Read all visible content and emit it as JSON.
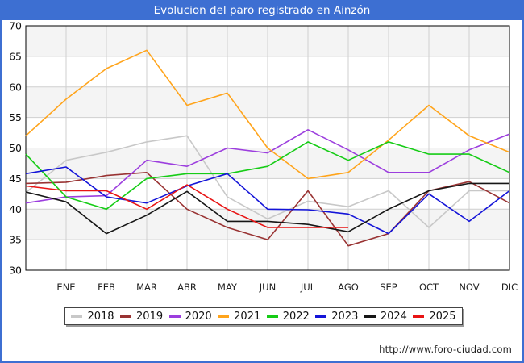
{
  "title": "Evolucion del paro registrado en Ainzón",
  "footer": {
    "url": "http://www.foro-ciudad.com"
  },
  "colors": {
    "frame_blue": "#3d6fd2",
    "grid": "#cfcfcf",
    "band": "#f4f4f4",
    "plot_border": "#000000"
  },
  "chart_data": {
    "type": "line",
    "title": "Evolucion del paro registrado en Ainzón",
    "xlabel": "",
    "ylabel": "",
    "ylim": [
      30,
      70
    ],
    "y_ticks": [
      30,
      35,
      40,
      45,
      50,
      55,
      60,
      65,
      70
    ],
    "grid": true,
    "legend_position": "bottom",
    "x_tick_labels": [
      "ENE",
      "FEB",
      "MAR",
      "ABR",
      "MAY",
      "JUN",
      "JUL",
      "AGO",
      "SEP",
      "OCT",
      "NOV",
      "DIC"
    ],
    "note": "each series has an unlabeled starting point at the left axis before ENE",
    "series": [
      {
        "name": "2018",
        "color": "#c8c8c8",
        "values": [
          42.7,
          48,
          49.3,
          51,
          52,
          42,
          38.4,
          41.3,
          40.4,
          43,
          37,
          43,
          43
        ]
      },
      {
        "name": "2019",
        "color": "#993333",
        "values": [
          44.2,
          44.4,
          45.5,
          46,
          40,
          37,
          35,
          43,
          34,
          36,
          43,
          44.5,
          41
        ]
      },
      {
        "name": "2020",
        "color": "#9c3ede",
        "values": [
          41,
          42,
          42.2,
          48,
          47,
          50,
          49.2,
          53,
          49.7,
          46,
          46,
          49.7,
          52.3
        ]
      },
      {
        "name": "2021",
        "color": "#ffa41b",
        "values": [
          52,
          58,
          63,
          66,
          57,
          59,
          50,
          45,
          46,
          51.3,
          57,
          52,
          49.3
        ]
      },
      {
        "name": "2022",
        "color": "#16cc16",
        "values": [
          49,
          42,
          40,
          45,
          45.8,
          45.8,
          47,
          51,
          48,
          51,
          49,
          49,
          46
        ]
      },
      {
        "name": "2023",
        "color": "#1414d8",
        "values": [
          45.8,
          46.9,
          42,
          41,
          43.8,
          45.8,
          40,
          39.9,
          39.2,
          36,
          42.5,
          38,
          43
        ]
      },
      {
        "name": "2024",
        "color": "#161616",
        "values": [
          42.8,
          41.2,
          36,
          39,
          42.9,
          38,
          38,
          37.5,
          36.3,
          40,
          43,
          44.2,
          44.2
        ]
      },
      {
        "name": "2025",
        "color": "#e81414",
        "values": [
          43.8,
          43,
          43,
          40,
          44,
          40,
          37,
          37,
          37
        ]
      }
    ]
  }
}
